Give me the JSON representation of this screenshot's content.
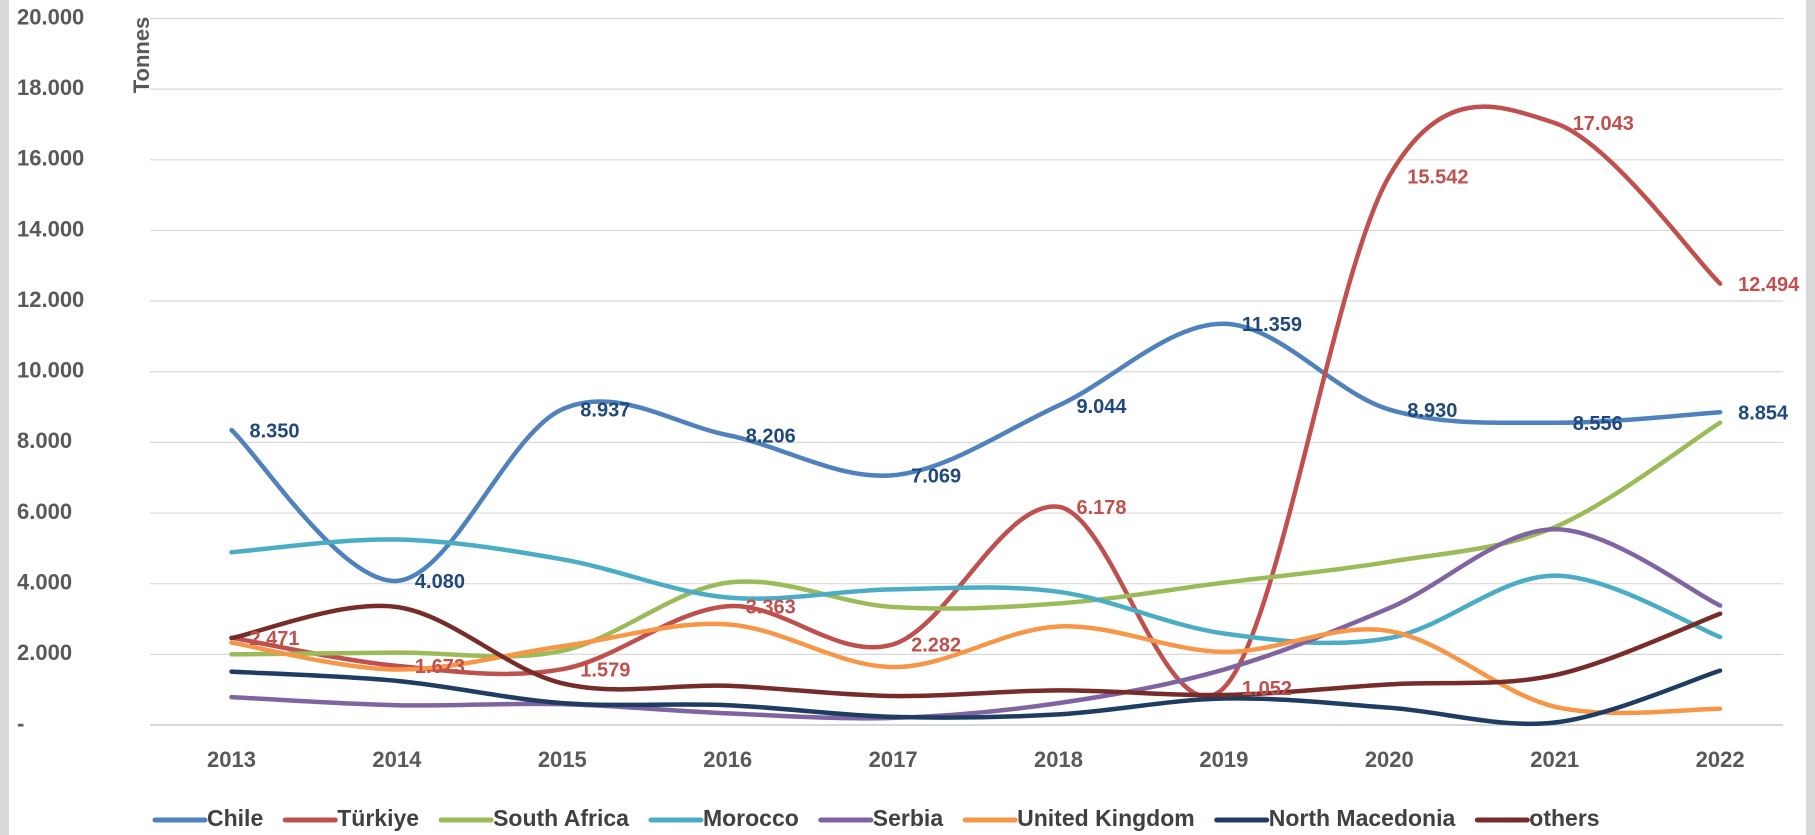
{
  "chart_data": {
    "type": "line",
    "y_label": "Tonnes",
    "categories": [
      "2013",
      "2014",
      "2015",
      "2016",
      "2017",
      "2018",
      "2019",
      "2020",
      "2021",
      "2022"
    ],
    "ylim": [
      0,
      20000
    ],
    "yticks": [
      {
        "value": 0,
        "label": "-"
      },
      {
        "value": 2000,
        "label": "2.000"
      },
      {
        "value": 4000,
        "label": "4.000"
      },
      {
        "value": 6000,
        "label": "6.000"
      },
      {
        "value": 8000,
        "label": "8.000"
      },
      {
        "value": 10000,
        "label": "10.000"
      },
      {
        "value": 12000,
        "label": "12.000"
      },
      {
        "value": 14000,
        "label": "14.000"
      },
      {
        "value": 16000,
        "label": "16.000"
      },
      {
        "value": 18000,
        "label": "18.000"
      },
      {
        "value": 20000,
        "label": "20.000"
      }
    ],
    "grid": true,
    "legend": "bottom",
    "series": [
      {
        "name": "Chile",
        "color": "#4f81bd",
        "label_color": "#1f497d",
        "values": [
          8350,
          4080,
          8937,
          8206,
          7069,
          9044,
          11359,
          8930,
          8556,
          8854
        ],
        "value_labels": [
          "8.350",
          "4.080",
          "8.937",
          "8.206",
          "7.069",
          "9.044",
          "11.359",
          "8.930",
          "8.556",
          "8.854"
        ]
      },
      {
        "name": "Türkiye",
        "color": "#c0504d",
        "label_color": "#c0504d",
        "values": [
          2471,
          1673,
          1579,
          3363,
          2282,
          6178,
          1052,
          15542,
          17043,
          12494
        ],
        "value_labels": [
          "2.471",
          "1.673",
          "1.579",
          "3.363",
          "2.282",
          "6.178",
          "1.052",
          "15.542",
          "17.043",
          "12.494"
        ]
      },
      {
        "name": "South Africa",
        "color": "#9bbb59",
        "values": [
          2000,
          2050,
          2100,
          4030,
          3340,
          3440,
          4030,
          4620,
          5600,
          8560
        ]
      },
      {
        "name": "Morocco",
        "color": "#4bacc6",
        "values": [
          4890,
          5250,
          4690,
          3610,
          3840,
          3770,
          2590,
          2460,
          4230,
          2490
        ]
      },
      {
        "name": "Serbia",
        "color": "#8064a2",
        "values": [
          790,
          560,
          590,
          330,
          200,
          620,
          1570,
          3310,
          5540,
          3380
        ]
      },
      {
        "name": "United Kingdom",
        "color": "#f79646",
        "values": [
          2330,
          1570,
          2230,
          2850,
          1640,
          2790,
          2070,
          2660,
          520,
          460
        ]
      },
      {
        "name": "North Macedonia",
        "color": "#1f3d63",
        "values": [
          1510,
          1250,
          620,
          560,
          230,
          300,
          750,
          490,
          70,
          1540
        ]
      },
      {
        "name": "others",
        "color": "#772c2a",
        "values": [
          2460,
          3340,
          1180,
          1110,
          820,
          980,
          850,
          1150,
          1410,
          3150
        ]
      }
    ]
  }
}
